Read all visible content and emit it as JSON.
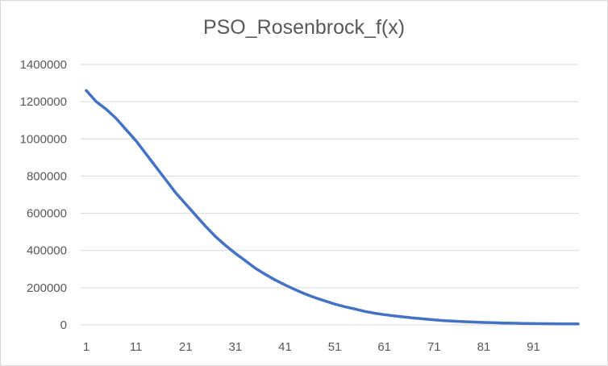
{
  "chart_data": {
    "type": "line",
    "title": "PSO_Rosenbrock_f(x)",
    "xlabel": "",
    "ylabel": "",
    "ylim": [
      0,
      1400000
    ],
    "y_ticks": [
      "0",
      "200000",
      "400000",
      "600000",
      "800000",
      "1000000",
      "1200000",
      "1400000"
    ],
    "x_ticks": [
      "1",
      "11",
      "21",
      "31",
      "41",
      "51",
      "61",
      "71",
      "81",
      "91"
    ],
    "x_tick_values": [
      1,
      11,
      21,
      31,
      41,
      51,
      61,
      71,
      81,
      91
    ],
    "x_range": [
      1,
      100
    ],
    "grid": "horizontal",
    "legend": "none",
    "series_color": "#4472c4",
    "series": [
      {
        "name": "",
        "x": [
          1,
          3,
          5,
          7,
          9,
          11,
          13,
          15,
          17,
          19,
          21,
          23,
          25,
          27,
          29,
          31,
          33,
          35,
          37,
          39,
          41,
          43,
          45,
          47,
          49,
          51,
          53,
          55,
          57,
          59,
          61,
          63,
          65,
          67,
          69,
          71,
          73,
          75,
          77,
          79,
          81,
          83,
          85,
          87,
          89,
          91,
          93,
          95,
          97,
          99,
          100
        ],
        "values": [
          1260000,
          1200000,
          1160000,
          1110000,
          1050000,
          990000,
          920000,
          850000,
          780000,
          710000,
          650000,
          590000,
          530000,
          475000,
          428000,
          385000,
          345000,
          305000,
          272000,
          242000,
          215000,
          190000,
          167000,
          147000,
          129000,
          112000,
          98000,
          86000,
          73000,
          63000,
          55000,
          48000,
          42000,
          37000,
          32000,
          27000,
          23000,
          20000,
          17500,
          15000,
          13000,
          11500,
          10000,
          9000,
          8000,
          7000,
          6500,
          6000,
          5500,
          5000,
          5000
        ]
      }
    ]
  }
}
